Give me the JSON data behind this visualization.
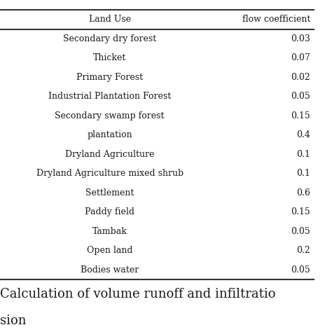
{
  "header": [
    "Land Use",
    "flow coefficient"
  ],
  "rows": [
    [
      "Secondary dry forest",
      "0.03"
    ],
    [
      "Thicket",
      "0.07"
    ],
    [
      "Primary Forest",
      "0.02"
    ],
    [
      "Industrial Plantation Forest",
      "0.05"
    ],
    [
      "Secondary swamp forest",
      "0.15"
    ],
    [
      "plantation",
      "0.4"
    ],
    [
      "Dryland Agriculture",
      "0.1"
    ],
    [
      "Dryland Agriculture mixed shrub",
      "0.1"
    ],
    [
      "Settlement",
      "0.6"
    ],
    [
      "Paddy field",
      "0.15"
    ],
    [
      "Tambak",
      "0.05"
    ],
    [
      "Open land",
      "0.2"
    ],
    [
      "Bodies water",
      "0.05"
    ]
  ],
  "caption_line1": "Calculation of volume runoff and infiltratio",
  "caption_line2": "sion",
  "bg_color": "#ffffff",
  "text_color": "#1a1a1a",
  "line_color": "#333333",
  "font_size": 9,
  "header_font_size": 9,
  "caption_font_size": 13
}
